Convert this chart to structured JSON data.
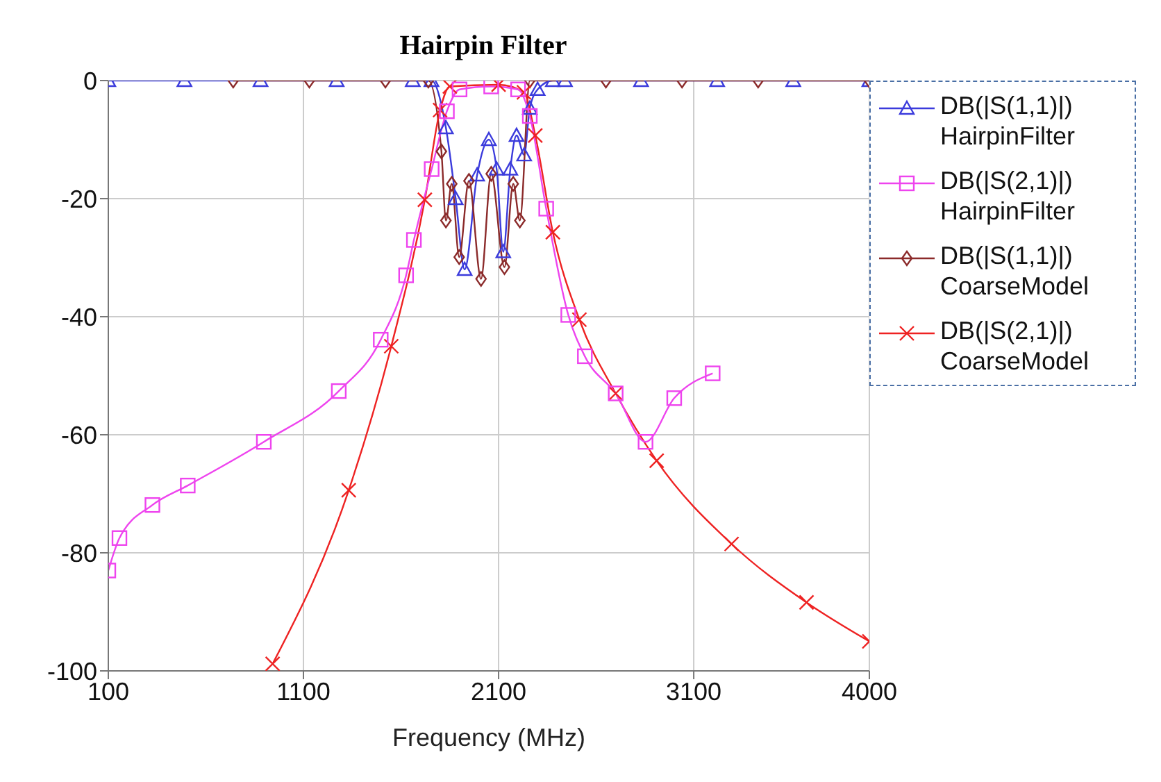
{
  "chart_data": {
    "type": "line",
    "title": "Hairpin Filter",
    "xlabel": "Frequency (MHz)",
    "xlim": [
      100,
      4000
    ],
    "xticks": [
      100,
      1100,
      2100,
      3100,
      4000
    ],
    "ylim": [
      -100,
      0
    ],
    "yticks": [
      -100,
      -80,
      -60,
      -40,
      -20,
      0
    ],
    "grid": true,
    "legend": "top right",
    "series": [
      {
        "name": "DB(|S(1,1)|) HairpinFilter",
        "color": "#3b3bdc",
        "marker": "triangle",
        "x": [
          100,
          490,
          880,
          1270,
          1660,
          1756,
          1830,
          1880,
          1926,
          1990,
          2050,
          2090,
          2124,
          2160,
          2192,
          2231,
          2260,
          2300,
          2378,
          2440,
          2830,
          3220,
          3610,
          4000
        ],
        "values": [
          0,
          0,
          0,
          0,
          0,
          0,
          -8,
          -20,
          -32,
          -16,
          -10,
          -15,
          -29,
          -15,
          -9.3,
          -12.6,
          -4.7,
          -1.5,
          0,
          0,
          0,
          0,
          0,
          0
        ]
      },
      {
        "name": "DB(|S(2,1)|) HairpinFilter",
        "color": "#ee44ee",
        "marker": "square",
        "x": [
          100,
          157,
          326,
          507,
          897,
          1281,
          1496,
          1626,
          1666,
          1757,
          1835,
          1900,
          2062,
          2200,
          2260,
          2344,
          2457,
          2542,
          2700,
          2853,
          3000,
          3197
        ],
        "values": [
          -83,
          -77.5,
          -71.9,
          -68.6,
          -61.2,
          -52.6,
          -43.9,
          -33,
          -27,
          -15,
          -5.2,
          -1.5,
          -1,
          -1.5,
          -6,
          -21.7,
          -39.7,
          -46.7,
          -53,
          -61.2,
          -53.8,
          -49.6
        ]
      },
      {
        "name": "DB(|S(1,1)|) CoarseModel",
        "color": "#8b2a2a",
        "marker": "diamond",
        "x": [
          740,
          1130,
          1520,
          1740,
          1807,
          1830,
          1860,
          1898,
          1948,
          2010,
          2062,
          2130,
          2175,
          2209,
          2260,
          2650,
          3040,
          3430,
          4000
        ],
        "values": [
          0,
          0,
          0,
          0,
          -12,
          -23.7,
          -17.5,
          -29.9,
          -17,
          -33.6,
          -15.8,
          -31.6,
          -17.5,
          -23.7,
          0,
          0,
          0,
          0,
          0
        ]
      },
      {
        "name": "DB(|S(2,1)|) CoarseModel",
        "color": "#ee2222",
        "marker": "cross",
        "x": [
          942,
          1332,
          1550,
          1722,
          1800,
          1850,
          2100,
          2230,
          2288,
          2378,
          2514,
          2700,
          2910,
          3294,
          3678,
          4000
        ],
        "values": [
          -98.8,
          -69.4,
          -45,
          -20.2,
          -5,
          -1,
          -0.7,
          -2,
          -9.3,
          -25.7,
          -40.5,
          -53,
          -64.4,
          -78.5,
          -88.4,
          -95
        ]
      }
    ]
  }
}
